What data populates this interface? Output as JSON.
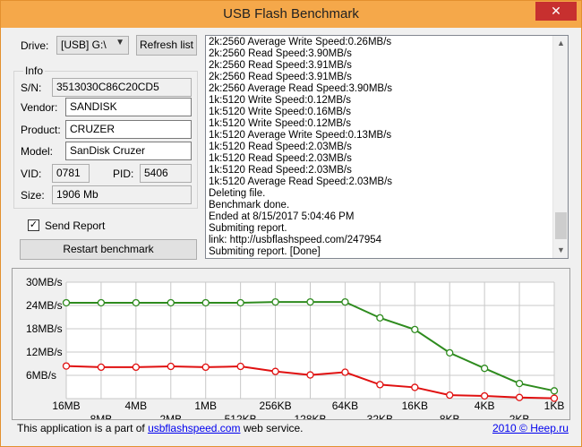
{
  "window": {
    "title": "USB Flash Benchmark",
    "close_glyph": "✕"
  },
  "drive": {
    "label": "Drive:",
    "selected": "[USB] G:\\",
    "refresh_label": "Refresh list"
  },
  "info": {
    "group_label": "Info",
    "sn_label": "S/N:",
    "sn_value": "3513030C86C20CD5",
    "vendor_label": "Vendor:",
    "vendor_value": "SANDISK",
    "product_label": "Product:",
    "product_value": "CRUZER",
    "model_label": "Model:",
    "model_value": "SanDisk Cruzer",
    "vid_label": "VID:",
    "vid_value": "0781",
    "pid_label": "PID:",
    "pid_value": "5406",
    "size_label": "Size:",
    "size_value": "1906 Mb"
  },
  "send_report": {
    "label": "Send Report",
    "checked": true,
    "check_glyph": "✓"
  },
  "restart_label": "Restart benchmark",
  "log": {
    "lines": [
      "2k:2560 Average Write Speed:0.26MB/s",
      "2k:2560 Read Speed:3.90MB/s",
      "2k:2560 Read Speed:3.91MB/s",
      "2k:2560 Read Speed:3.91MB/s",
      "2k:2560 Average Read Speed:3.90MB/s",
      "1k:5120 Write Speed:0.12MB/s",
      "1k:5120 Write Speed:0.16MB/s",
      "1k:5120 Write Speed:0.12MB/s",
      "1k:5120 Average Write Speed:0.13MB/s",
      "1k:5120 Read Speed:2.03MB/s",
      "1k:5120 Read Speed:2.03MB/s",
      "1k:5120 Read Speed:2.03MB/s",
      "1k:5120 Average Read Speed:2.03MB/s",
      "Deleting file.",
      "Benchmark done.",
      "Ended at 8/15/2017 5:04:46 PM",
      "Submiting report.",
      "link: http://usbflashspeed.com/247954",
      "Submiting report. [Done]"
    ],
    "scroll_up": "▲",
    "scroll_down": "▼"
  },
  "chart_data": {
    "type": "line",
    "categories": [
      "16MB",
      "8MB",
      "4MB",
      "2MB",
      "1MB",
      "512KB",
      "256KB",
      "128KB",
      "64KB",
      "32KB",
      "16KB",
      "8KB",
      "4KB",
      "2KB",
      "1KB"
    ],
    "y_tick_labels": [
      "30MB/s",
      "24MB/s",
      "18MB/s",
      "12MB/s",
      "6MB/s"
    ],
    "ylim": [
      0,
      30
    ],
    "grid": true,
    "colors": {
      "read": "#2e8b1e",
      "write": "#e01010",
      "grid": "#c8c8c8"
    },
    "series": [
      {
        "values": [
          24.7,
          24.7,
          24.7,
          24.7,
          24.7,
          24.7,
          24.9,
          24.9,
          24.9,
          20.8,
          17.8,
          11.8,
          7.8,
          3.9,
          2.0
        ]
      },
      {
        "values": [
          8.4,
          8.1,
          8.1,
          8.3,
          8.1,
          8.3,
          7.0,
          6.1,
          6.8,
          3.6,
          2.9,
          0.9,
          0.7,
          0.3,
          0.1
        ]
      }
    ]
  },
  "footer": {
    "text_before": "This application is a part of ",
    "link": "usbflashspeed.com",
    "text_after": " web service.",
    "copyright": "2010 © Heep.ru"
  }
}
